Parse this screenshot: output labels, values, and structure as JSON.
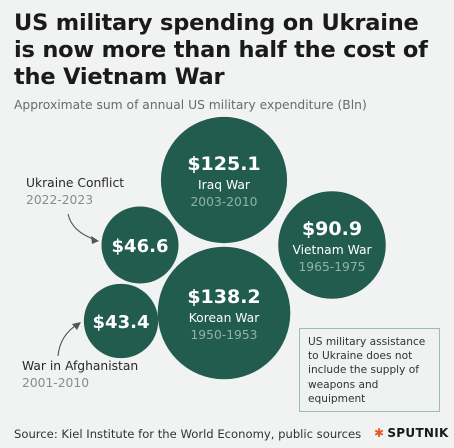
{
  "title": "US military spending on Ukraine is now more than half the cost of the Vietnam War",
  "subtitle": "Approximate sum of annual US military expenditure (Bln)",
  "note": "US military assistance to Ukraine does not include the supply of weapons and equipment",
  "source": "Source: Kiel Institute for the World Economy, public sources",
  "brand": "SPUTNIK",
  "colors": {
    "bubble": "#225c4e",
    "years_text": "#8fb3a6",
    "background": "#f0f3f2"
  },
  "chart_data": {
    "type": "bubble",
    "unit": "Bln",
    "series": [
      {
        "name": "Iraq War",
        "years": "2003-2010",
        "value": 125.1,
        "label": "$125.1"
      },
      {
        "name": "Vietnam War",
        "years": "1965-1975",
        "value": 90.9,
        "label": "$90.9"
      },
      {
        "name": "Ukraine Conflict",
        "years": "2022-2023",
        "value": 46.6,
        "label": "$46.6"
      },
      {
        "name": "Korean War",
        "years": "1950-1953",
        "value": 138.2,
        "label": "$138.2"
      },
      {
        "name": "War in Afghanistan",
        "years": "2001-2010",
        "value": 43.4,
        "label": "$43.4"
      }
    ]
  }
}
